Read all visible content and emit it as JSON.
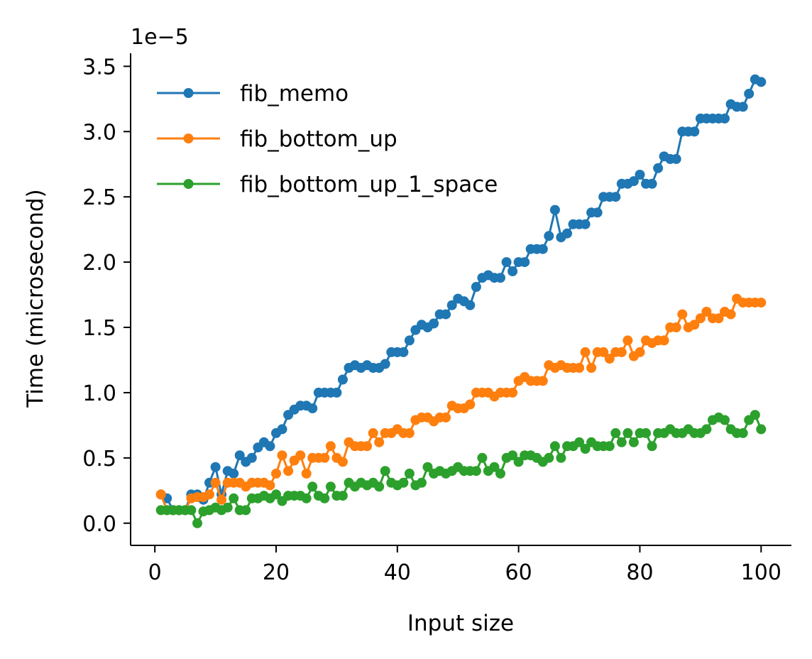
{
  "chart_data": {
    "type": "line",
    "title": "",
    "xlabel": "Input size",
    "ylabel": "Time (microsecond)",
    "y_offset_label": "1e−5",
    "xlim": [
      -4,
      105
    ],
    "ylim": [
      -0.17,
      3.6
    ],
    "x_ticks": [
      0,
      20,
      40,
      60,
      80,
      100
    ],
    "y_ticks": [
      0.0,
      0.5,
      1.0,
      1.5,
      2.0,
      2.5,
      3.0,
      3.5
    ],
    "x_tick_labels": [
      "0",
      "20",
      "40",
      "60",
      "80",
      "100"
    ],
    "y_tick_labels": [
      "0.0",
      "0.5",
      "1.0",
      "1.5",
      "2.0",
      "2.5",
      "3.0",
      "3.5"
    ],
    "grid": false,
    "legend_position": "top-left",
    "series": [
      {
        "name": "fib_memo",
        "color": "#1f77b4",
        "values": [
          0.22,
          0.19,
          0.1,
          0.1,
          0.1,
          0.22,
          0.22,
          0.18,
          0.31,
          0.43,
          0.22,
          0.4,
          0.38,
          0.52,
          0.47,
          0.5,
          0.58,
          0.62,
          0.59,
          0.69,
          0.72,
          0.83,
          0.87,
          0.9,
          0.9,
          0.88,
          1.0,
          1.0,
          1.0,
          1.0,
          1.1,
          1.19,
          1.21,
          1.19,
          1.21,
          1.19,
          1.19,
          1.22,
          1.31,
          1.31,
          1.31,
          1.4,
          1.48,
          1.52,
          1.5,
          1.53,
          1.6,
          1.6,
          1.67,
          1.72,
          1.7,
          1.67,
          1.81,
          1.88,
          1.9,
          1.88,
          1.88,
          2.0,
          1.93,
          2.0,
          2.0,
          2.1,
          2.1,
          2.1,
          2.2,
          2.4,
          2.19,
          2.22,
          2.29,
          2.29,
          2.29,
          2.38,
          2.38,
          2.5,
          2.5,
          2.5,
          2.6,
          2.6,
          2.62,
          2.67,
          2.6,
          2.6,
          2.72,
          2.81,
          2.79,
          2.79,
          3.0,
          3.0,
          3.0,
          3.1,
          3.1,
          3.1,
          3.1,
          3.1,
          3.21,
          3.19,
          3.19,
          3.29,
          3.4,
          3.38
        ]
      },
      {
        "name": "fib_bottom_up",
        "color": "#ff7f0e",
        "values": [
          0.22,
          0.1,
          0.1,
          0.1,
          0.1,
          0.19,
          0.2,
          0.2,
          0.22,
          0.31,
          0.18,
          0.31,
          0.31,
          0.31,
          0.28,
          0.31,
          0.31,
          0.31,
          0.29,
          0.38,
          0.52,
          0.4,
          0.48,
          0.52,
          0.38,
          0.5,
          0.5,
          0.5,
          0.59,
          0.5,
          0.47,
          0.62,
          0.59,
          0.59,
          0.59,
          0.69,
          0.62,
          0.69,
          0.69,
          0.72,
          0.69,
          0.69,
          0.79,
          0.81,
          0.81,
          0.78,
          0.81,
          0.81,
          0.9,
          0.88,
          0.88,
          0.91,
          1.0,
          1.0,
          1.0,
          0.97,
          1.0,
          1.0,
          1.0,
          1.09,
          1.12,
          1.09,
          1.09,
          1.09,
          1.21,
          1.19,
          1.21,
          1.19,
          1.19,
          1.19,
          1.31,
          1.19,
          1.31,
          1.31,
          1.26,
          1.31,
          1.31,
          1.4,
          1.28,
          1.31,
          1.4,
          1.38,
          1.4,
          1.4,
          1.5,
          1.5,
          1.6,
          1.5,
          1.52,
          1.57,
          1.62,
          1.57,
          1.57,
          1.62,
          1.6,
          1.72,
          1.69,
          1.69,
          1.69,
          1.69
        ]
      },
      {
        "name": "fib_bottom_up_1_space",
        "color": "#2ca02c",
        "values": [
          0.1,
          0.1,
          0.1,
          0.1,
          0.1,
          0.1,
          0.0,
          0.09,
          0.1,
          0.12,
          0.1,
          0.12,
          0.19,
          0.1,
          0.1,
          0.19,
          0.19,
          0.21,
          0.19,
          0.22,
          0.17,
          0.21,
          0.21,
          0.21,
          0.19,
          0.28,
          0.21,
          0.19,
          0.28,
          0.21,
          0.21,
          0.31,
          0.28,
          0.31,
          0.29,
          0.31,
          0.28,
          0.4,
          0.31,
          0.29,
          0.31,
          0.38,
          0.29,
          0.31,
          0.43,
          0.38,
          0.4,
          0.38,
          0.4,
          0.43,
          0.4,
          0.4,
          0.4,
          0.5,
          0.4,
          0.43,
          0.38,
          0.5,
          0.52,
          0.47,
          0.52,
          0.52,
          0.5,
          0.47,
          0.5,
          0.59,
          0.5,
          0.59,
          0.59,
          0.62,
          0.57,
          0.62,
          0.59,
          0.59,
          0.59,
          0.69,
          0.62,
          0.69,
          0.62,
          0.69,
          0.69,
          0.59,
          0.69,
          0.69,
          0.72,
          0.69,
          0.69,
          0.72,
          0.69,
          0.69,
          0.72,
          0.79,
          0.81,
          0.79,
          0.72,
          0.69,
          0.69,
          0.79,
          0.83,
          0.72
        ]
      }
    ]
  }
}
